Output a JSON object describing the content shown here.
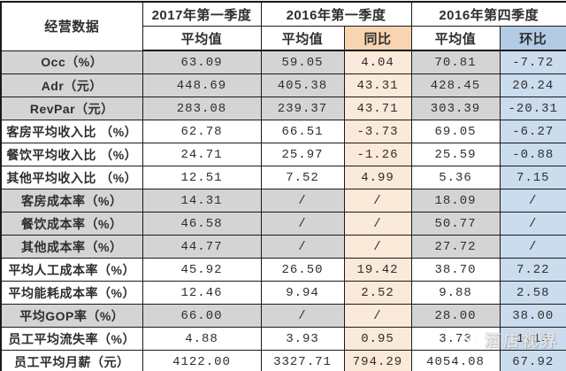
{
  "chart_data": {
    "type": "table",
    "title": "经营数据",
    "corner_header": "经营数据",
    "column_groups": [
      {
        "title": "2017年第一季度",
        "subcolumns": [
          "平均值"
        ]
      },
      {
        "title": "2016年第一季度",
        "subcolumns": [
          "平均值",
          "同比"
        ]
      },
      {
        "title": "2016年第四季度",
        "subcolumns": [
          "平均值",
          "环比"
        ]
      }
    ],
    "rows": [
      {
        "label": "Occ（%）",
        "values": [
          "63.09",
          "59.05",
          "4.04",
          "70.81",
          "-7.72"
        ],
        "shaded": true
      },
      {
        "label": "Adr（元）",
        "values": [
          "448.69",
          "405.38",
          "43.31",
          "428.45",
          "20.24"
        ],
        "shaded": true
      },
      {
        "label": "RevPar（元）",
        "values": [
          "283.08",
          "239.37",
          "43.71",
          "303.39",
          "-20.31"
        ],
        "shaded": true
      },
      {
        "label": "客房平均收入比 （%）",
        "values": [
          "62.78",
          "66.51",
          "-3.73",
          "69.05",
          "-6.27"
        ],
        "shaded": false
      },
      {
        "label": "餐饮平均收入比 （%）",
        "values": [
          "24.71",
          "25.97",
          "-1.26",
          "25.59",
          "-0.88"
        ],
        "shaded": false
      },
      {
        "label": "其他平均收入比 （%）",
        "values": [
          "12.51",
          "7.52",
          "4.99",
          "5.36",
          "7.15"
        ],
        "shaded": false
      },
      {
        "label": "客房成本率（%）",
        "values": [
          "14.31",
          "/",
          "/",
          "18.09",
          "/"
        ],
        "shaded": true
      },
      {
        "label": "餐饮成本率（%）",
        "values": [
          "46.58",
          "/",
          "/",
          "50.77",
          "/"
        ],
        "shaded": true
      },
      {
        "label": "其他成本率（%）",
        "values": [
          "44.77",
          "/",
          "/",
          "27.72",
          "/"
        ],
        "shaded": true
      },
      {
        "label": "平均人工成本率（%）",
        "values": [
          "45.92",
          "26.50",
          "19.42",
          "38.70",
          "7.22"
        ],
        "shaded": false
      },
      {
        "label": "平均能耗成本率（%）",
        "values": [
          "12.46",
          "9.94",
          "2.52",
          "9.88",
          "2.58"
        ],
        "shaded": false
      },
      {
        "label": "平均GOP率（%）",
        "values": [
          "66.00",
          "/",
          "/",
          "28.00",
          "38.00"
        ],
        "shaded": true
      },
      {
        "label": "员工平均流失率（%）",
        "values": [
          "4.88",
          "3.93",
          "0.95",
          "3.73",
          "1.15"
        ],
        "shaded": false
      },
      {
        "label": "员工平均月薪（元）",
        "values": [
          "4122.00",
          "3327.71",
          "794.29",
          "4054.08",
          "67.92"
        ],
        "shaded": false
      }
    ]
  },
  "watermark": {
    "text": "酒店视界"
  },
  "colors": {
    "border": "#1a1a1a",
    "row_shade": "#d4d4d4",
    "tongbi_header_bg": "#f8d5b0",
    "tongbi_cell_bg": "#fbe9da",
    "huanbi_header_bg": "#b4cbe4",
    "huanbi_cell_bg": "#cadced",
    "negative_text": "#cf6672"
  }
}
